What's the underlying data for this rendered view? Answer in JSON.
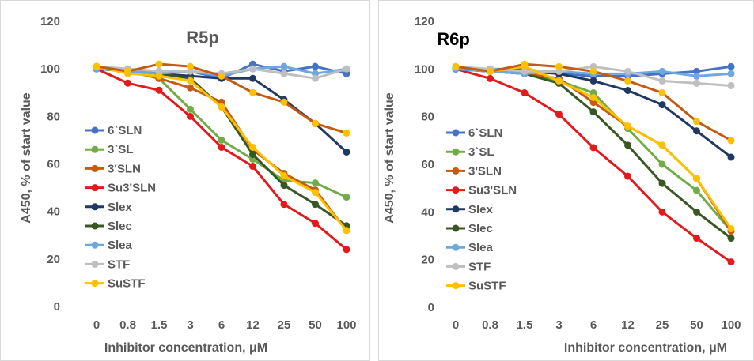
{
  "chart_data": [
    {
      "type": "line",
      "title": "R5p",
      "xlabel": "Inhibitor concentration, μM",
      "ylabel": "A450, % of start value",
      "categories": [
        "0",
        "0.8",
        "1.5",
        "3",
        "6",
        "12",
        "25",
        "50",
        "100"
      ],
      "yticks": [
        "0",
        "20",
        "40",
        "60",
        "80",
        "100",
        "120"
      ],
      "ylim": [
        0,
        120
      ],
      "grid": false,
      "legend_position": "left",
      "series": [
        {
          "name": "6`SLN",
          "color": "#4472C4",
          "values": [
            100,
            99,
            99,
            99,
            96,
            102,
            99,
            101,
            98
          ]
        },
        {
          "name": "3`SL",
          "color": "#70AD47",
          "values": [
            100,
            99,
            96,
            83,
            70,
            62,
            53,
            52,
            46
          ]
        },
        {
          "name": "3'SLN",
          "color": "#C55A11",
          "values": [
            101,
            99,
            96,
            92,
            86,
            66,
            56,
            49,
            32
          ]
        },
        {
          "name": "Su3'SLN",
          "color": "#E31A1C",
          "values": [
            100,
            94,
            91,
            80,
            67,
            59,
            43,
            35,
            24
          ]
        },
        {
          "name": "Slex",
          "color": "#203864",
          "values": [
            100,
            99,
            98,
            97,
            96,
            96,
            87,
            77,
            65
          ]
        },
        {
          "name": "Slec",
          "color": "#385723",
          "values": [
            100,
            99,
            98,
            96,
            84,
            64,
            51,
            43,
            34
          ]
        },
        {
          "name": "Slea",
          "color": "#6FA8DC",
          "values": [
            100,
            99,
            98,
            99,
            97,
            100,
            101,
            98,
            100
          ]
        },
        {
          "name": "STF",
          "color": "#BFBFBF",
          "values": [
            101,
            100,
            99,
            99,
            98,
            100,
            98,
            96,
            100
          ]
        },
        {
          "name": "SuSTF",
          "color": "#FFC000",
          "values": [
            101,
            98,
            97,
            95,
            84,
            67,
            55,
            48,
            32
          ]
        }
      ],
      "extra_series": {
        "name": "",
        "color": "#C55A11",
        "values": [
          101,
          99,
          102,
          101,
          97,
          90,
          86,
          77,
          73
        ],
        "marker_color": "#FFC000"
      }
    },
    {
      "type": "line",
      "title": "R6p",
      "xlabel": "Inhibitor concentration, μM",
      "ylabel": "A450, % of start value",
      "categories": [
        "0",
        "0.8",
        "1.5",
        "3",
        "6",
        "12",
        "25",
        "50",
        "100"
      ],
      "yticks": [
        "0",
        "20",
        "40",
        "60",
        "80",
        "100",
        "120"
      ],
      "ylim": [
        0,
        120
      ],
      "grid": false,
      "legend_position": "left",
      "series": [
        {
          "name": "6`SLN",
          "color": "#4472C4",
          "values": [
            100,
            100,
            100,
            98,
            97,
            97,
            98,
            99,
            101
          ]
        },
        {
          "name": "3`SL",
          "color": "#70AD47",
          "values": [
            100,
            99,
            98,
            95,
            90,
            75,
            60,
            49,
            32
          ]
        },
        {
          "name": "3'SLN",
          "color": "#C55A11",
          "values": [
            101,
            99,
            98,
            96,
            86,
            76,
            68,
            54,
            32
          ]
        },
        {
          "name": "Su3'SLN",
          "color": "#E31A1C",
          "values": [
            100,
            96,
            90,
            81,
            67,
            55,
            40,
            29,
            19
          ]
        },
        {
          "name": "Slex",
          "color": "#203864",
          "values": [
            100,
            99,
            99,
            98,
            95,
            91,
            85,
            74,
            63
          ]
        },
        {
          "name": "Slec",
          "color": "#385723",
          "values": [
            100,
            99,
            98,
            94,
            82,
            68,
            52,
            40,
            29
          ]
        },
        {
          "name": "Slea",
          "color": "#6FA8DC",
          "values": [
            100,
            99,
            98,
            99,
            98,
            98,
            99,
            97,
            98
          ]
        },
        {
          "name": "STF",
          "color": "#BFBFBF",
          "values": [
            101,
            100,
            99,
            99,
            101,
            99,
            95,
            94,
            93
          ]
        },
        {
          "name": "SuSTF",
          "color": "#FFC000",
          "values": [
            101,
            99,
            101,
            95,
            88,
            76,
            68,
            54,
            33
          ]
        }
      ],
      "extra_series": {
        "name": "",
        "color": "#C55A11",
        "values": [
          101,
          99,
          102,
          101,
          99,
          95,
          90,
          78,
          70
        ],
        "marker_color": "#FFC000"
      }
    }
  ]
}
